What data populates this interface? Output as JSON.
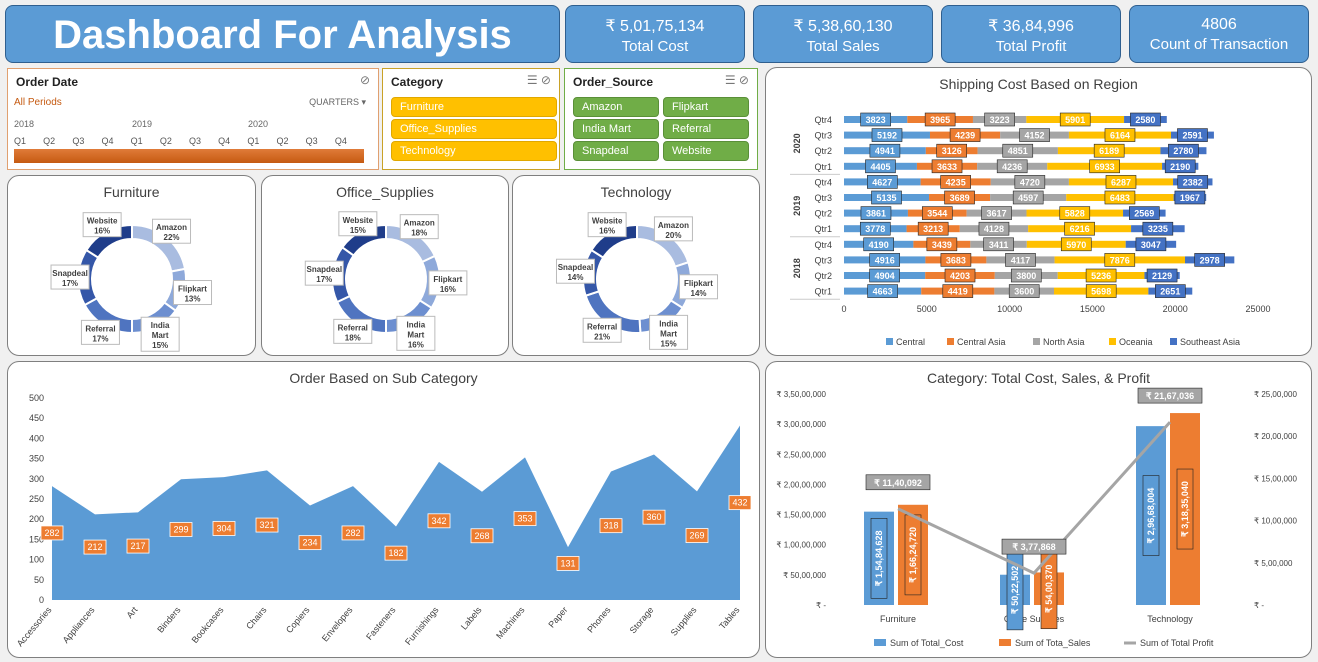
{
  "header": {
    "title": "Dashboard For Analysis"
  },
  "kpis": [
    {
      "value": "₹ 5,01,75,134",
      "label": "Total Cost"
    },
    {
      "value": "₹ 5,38,60,130",
      "label": "Total Sales"
    },
    {
      "value": "₹ 36,84,996",
      "label": "Total Profit"
    },
    {
      "value": "4806",
      "label": "Count of Transaction"
    }
  ],
  "date_slicer": {
    "title": "Order Date",
    "period": "All Periods",
    "mode": "QUARTERS",
    "years": [
      "2018",
      "2019",
      "2020"
    ],
    "quarters": [
      "Q1",
      "Q2",
      "Q3",
      "Q4",
      "Q1",
      "Q2",
      "Q3",
      "Q4",
      "Q1",
      "Q2",
      "Q3",
      "Q4"
    ]
  },
  "category_slicer": {
    "title": "Category",
    "items": [
      "Furniture",
      "Office_Supplies",
      "Technology"
    ]
  },
  "source_slicer": {
    "title": "Order_Source",
    "items": [
      "Amazon",
      "Flipkart",
      "India Mart",
      "Referral",
      "Snapdeal",
      "Website"
    ]
  },
  "donuts": {
    "colors": [
      "#a9bce0",
      "#8ea9da",
      "#6d8fd0",
      "#4f74c0",
      "#3557a8",
      "#1f3d8a"
    ],
    "charts": [
      {
        "title": "Furniture",
        "slices": [
          {
            "name": "Amazon",
            "value": 22,
            "label": "22%"
          },
          {
            "name": "Flipkart",
            "value": 13,
            "label": "13%"
          },
          {
            "name": "India Mart",
            "value": 15,
            "label": "15%"
          },
          {
            "name": "Referral",
            "value": 17,
            "label": "17%"
          },
          {
            "name": "Snapdeal",
            "value": 17,
            "label": "17%"
          },
          {
            "name": "Website",
            "value": 16,
            "label": "16%"
          }
        ]
      },
      {
        "title": "Office_Supplies",
        "slices": [
          {
            "name": "Amazon",
            "value": 18,
            "label": "18%"
          },
          {
            "name": "Flipkart",
            "value": 16,
            "label": "16%"
          },
          {
            "name": "India Mart",
            "value": 16,
            "label": "16%"
          },
          {
            "name": "Referral",
            "value": 18,
            "label": "18%"
          },
          {
            "name": "Snapdeal",
            "value": 17,
            "label": "17%"
          },
          {
            "name": "Website",
            "value": 15,
            "label": "15%"
          }
        ]
      },
      {
        "title": "Technology",
        "slices": [
          {
            "name": "Amazon",
            "value": 20,
            "label": "20%"
          },
          {
            "name": "Flipkart",
            "value": 14,
            "label": "14%"
          },
          {
            "name": "India Mart",
            "value": 15,
            "label": "15%"
          },
          {
            "name": "Referral",
            "value": 21,
            "label": "21%"
          },
          {
            "name": "Snapdeal",
            "value": 14,
            "label": "14%"
          },
          {
            "name": "Website",
            "value": 16,
            "label": "16%"
          }
        ]
      }
    ]
  },
  "chart_data": [
    {
      "type": "bar",
      "title": "Shipping Cost Based on Region",
      "stacked": true,
      "orientation": "horizontal",
      "years": [
        "2018",
        "2019",
        "2020"
      ],
      "quarters": [
        "Qtr1",
        "Qtr2",
        "Qtr3",
        "Qtr4"
      ],
      "xlim": [
        0,
        25000
      ],
      "xticks": [
        "0",
        "5000",
        "10000",
        "15000",
        "20000",
        "25000"
      ],
      "series": [
        {
          "name": "Central",
          "color": "#5b9bd5",
          "values": [
            4663,
            4904,
            4916,
            4190,
            3778,
            3861,
            5135,
            4627,
            4405,
            4941,
            5192,
            3823
          ]
        },
        {
          "name": "Central Asia",
          "color": "#ed7d31",
          "values": [
            4419,
            4203,
            3683,
            3439,
            3213,
            3544,
            3689,
            4235,
            3633,
            3126,
            4239,
            3965
          ]
        },
        {
          "name": "North Asia",
          "color": "#a5a5a5",
          "values": [
            3600,
            3800,
            4117,
            3411,
            4128,
            3617,
            4597,
            4720,
            4236,
            4851,
            4152,
            3223
          ]
        },
        {
          "name": "Oceania",
          "color": "#ffc000",
          "values": [
            5698,
            5236,
            7876,
            5970,
            6216,
            5828,
            6483,
            6287,
            6933,
            6189,
            6164,
            5901
          ]
        },
        {
          "name": "Southeast Asia",
          "color": "#4472c4",
          "values": [
            2651,
            2129,
            2978,
            3047,
            3235,
            2569,
            1967,
            2382,
            2190,
            2780,
            2591,
            2580
          ]
        }
      ],
      "legend_position": "bottom"
    },
    {
      "type": "area",
      "title": "Order Based on Sub Category",
      "categories": [
        "Accessories",
        "Appliances",
        "Art",
        "Binders",
        "Bookcases",
        "Chairs",
        "Copiers",
        "Envelopes",
        "Fasteners",
        "Furnishings",
        "Labels",
        "Machines",
        "Paper",
        "Phones",
        "Storage",
        "Supplies",
        "Tables"
      ],
      "values": [
        282,
        212,
        217,
        299,
        304,
        321,
        234,
        282,
        182,
        342,
        268,
        353,
        131,
        318,
        360,
        269,
        432
      ],
      "ylim": [
        0,
        500
      ],
      "yticks": [
        "0",
        "50",
        "100",
        "150",
        "200",
        "250",
        "300",
        "350",
        "400",
        "450",
        "500"
      ],
      "color": "#5b9bd5",
      "label_color": "#ed7d31"
    },
    {
      "type": "bar",
      "title": "Category: Total Cost, Sales, & Profit",
      "categories": [
        "Furniture",
        "Office Supplies",
        "Technology"
      ],
      "ylim_left": [
        0,
        35000000
      ],
      "ylim_right": [
        0,
        2500000
      ],
      "yticks_left": [
        "₹ -",
        "₹ 50,00,000",
        "₹ 1,00,00,000",
        "₹ 1,50,00,000",
        "₹ 2,00,00,000",
        "₹ 2,50,00,000",
        "₹ 3,00,00,000",
        "₹ 3,50,00,000"
      ],
      "yticks_right": [
        "₹ -",
        "₹ 5,00,000",
        "₹ 10,00,000",
        "₹ 15,00,000",
        "₹ 20,00,000",
        "₹ 25,00,000"
      ],
      "series": [
        {
          "name": "Sum of Total_Cost",
          "type": "bar",
          "axis": "left",
          "color": "#5b9bd5",
          "values": [
            15484628,
            5022502,
            29668004
          ],
          "labels": [
            "₹ 1,54,84,628",
            "₹ 50,22,502",
            "₹ 2,96,68,004"
          ]
        },
        {
          "name": "Sum of Tota_Sales",
          "type": "bar",
          "axis": "left",
          "color": "#ed7d31",
          "values": [
            16624720,
            5400370,
            31835040
          ],
          "labels": [
            "₹ 1,66,24,720",
            "₹ 54,00,370",
            "₹ 3,18,35,040"
          ]
        },
        {
          "name": "Sum of Total Profit",
          "type": "line",
          "axis": "right",
          "color": "#a5a5a5",
          "values": [
            1140092,
            377868,
            2167036
          ],
          "labels": [
            "₹ 11,40,092",
            "₹ 3,77,868",
            "₹ 21,67,036"
          ]
        }
      ],
      "legend_position": "bottom"
    }
  ]
}
